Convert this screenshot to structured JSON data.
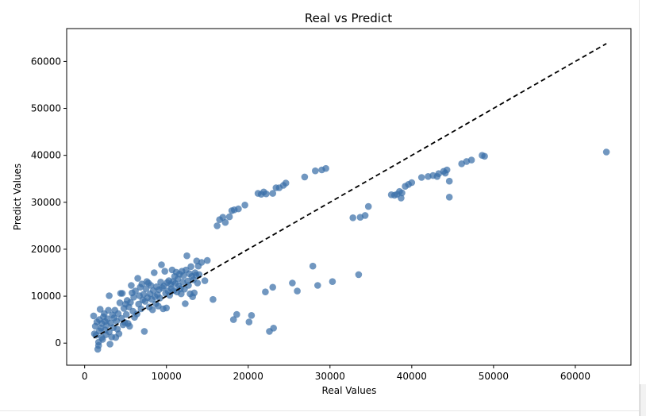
{
  "chart_data": {
    "type": "scatter",
    "title": "Real vs Predict",
    "xlabel": "Real Values",
    "ylabel": "Predict Values",
    "xlim": [
      -2200,
      66800
    ],
    "ylim": [
      -4700,
      67000
    ],
    "xticks": [
      0,
      10000,
      20000,
      30000,
      40000,
      50000,
      60000
    ],
    "yticks": [
      0,
      10000,
      20000,
      30000,
      40000,
      50000,
      60000
    ],
    "grid": false,
    "point_color": "#3a6fa8",
    "line_color": "#000000",
    "reference_line": {
      "x": [
        1100,
        63800
      ],
      "y": [
        1100,
        63800
      ],
      "style": "dashed"
    },
    "points": [
      [
        1100,
        5800
      ],
      [
        1200,
        2000
      ],
      [
        1300,
        3600
      ],
      [
        1400,
        1700
      ],
      [
        1500,
        4500
      ],
      [
        1600,
        -1300
      ],
      [
        1700,
        -500
      ],
      [
        1700,
        200
      ],
      [
        1800,
        2600
      ],
      [
        1800,
        5000
      ],
      [
        1900,
        7200
      ],
      [
        2000,
        3200
      ],
      [
        2100,
        1200
      ],
      [
        2100,
        4200
      ],
      [
        2200,
        800
      ],
      [
        2300,
        5600
      ],
      [
        2400,
        6300
      ],
      [
        2500,
        2800
      ],
      [
        2500,
        4600
      ],
      [
        2600,
        1800
      ],
      [
        2700,
        3800
      ],
      [
        2800,
        5200
      ],
      [
        2900,
        7000
      ],
      [
        3000,
        10100
      ],
      [
        3000,
        2400
      ],
      [
        3100,
        -200
      ],
      [
        3200,
        4300
      ],
      [
        3300,
        1300
      ],
      [
        3400,
        6000
      ],
      [
        3500,
        3300
      ],
      [
        3600,
        5400
      ],
      [
        3700,
        7000
      ],
      [
        3800,
        1200
      ],
      [
        3900,
        4700
      ],
      [
        4000,
        3000
      ],
      [
        4100,
        6300
      ],
      [
        4200,
        2000
      ],
      [
        4300,
        8600
      ],
      [
        4400,
        10600
      ],
      [
        4500,
        5300
      ],
      [
        4600,
        10600
      ],
      [
        4700,
        3900
      ],
      [
        4800,
        7400
      ],
      [
        4900,
        4400
      ],
      [
        5000,
        8300
      ],
      [
        5100,
        6100
      ],
      [
        5200,
        9100
      ],
      [
        5300,
        4200
      ],
      [
        5400,
        7700
      ],
      [
        5500,
        3600
      ],
      [
        5600,
        8700
      ],
      [
        5700,
        12300
      ],
      [
        5800,
        10700
      ],
      [
        5900,
        6800
      ],
      [
        6000,
        9800
      ],
      [
        6100,
        5500
      ],
      [
        6200,
        11100
      ],
      [
        6400,
        6200
      ],
      [
        6500,
        13800
      ],
      [
        6600,
        8300
      ],
      [
        6700,
        10100
      ],
      [
        6800,
        11900
      ],
      [
        6900,
        7300
      ],
      [
        7000,
        12600
      ],
      [
        7100,
        9200
      ],
      [
        7200,
        10400
      ],
      [
        7300,
        2500
      ],
      [
        7400,
        8900
      ],
      [
        7500,
        11600
      ],
      [
        7600,
        13100
      ],
      [
        7700,
        9700
      ],
      [
        7800,
        12800
      ],
      [
        7900,
        7700
      ],
      [
        8000,
        10500
      ],
      [
        8100,
        12300
      ],
      [
        8200,
        9300
      ],
      [
        8300,
        7100
      ],
      [
        8400,
        11200
      ],
      [
        8500,
        15000
      ],
      [
        8600,
        9900
      ],
      [
        8700,
        8400
      ],
      [
        8800,
        12000
      ],
      [
        8900,
        10300
      ],
      [
        9000,
        7900
      ],
      [
        9100,
        11400
      ],
      [
        9200,
        9600
      ],
      [
        9300,
        13000
      ],
      [
        9400,
        16700
      ],
      [
        9500,
        11800
      ],
      [
        9600,
        7300
      ],
      [
        9700,
        12200
      ],
      [
        9800,
        15300
      ],
      [
        9900,
        10600
      ],
      [
        10000,
        7500
      ],
      [
        10100,
        12900
      ],
      [
        10200,
        11100
      ],
      [
        10300,
        13300
      ],
      [
        10400,
        10200
      ],
      [
        10500,
        12500
      ],
      [
        10600,
        11600
      ],
      [
        10700,
        15600
      ],
      [
        10800,
        13100
      ],
      [
        10900,
        11200
      ],
      [
        11000,
        14200
      ],
      [
        11100,
        12700
      ],
      [
        11200,
        15100
      ],
      [
        11300,
        10900
      ],
      [
        11400,
        13700
      ],
      [
        11500,
        12200
      ],
      [
        11600,
        14700
      ],
      [
        11700,
        11600
      ],
      [
        11800,
        10500
      ],
      [
        11900,
        15300
      ],
      [
        12000,
        13000
      ],
      [
        12100,
        14400
      ],
      [
        12200,
        11500
      ],
      [
        12300,
        8400
      ],
      [
        12400,
        15600
      ],
      [
        12500,
        18600
      ],
      [
        12600,
        13200
      ],
      [
        12700,
        12300
      ],
      [
        12800,
        14800
      ],
      [
        12900,
        10500
      ],
      [
        13000,
        16300
      ],
      [
        13100,
        14200
      ],
      [
        13200,
        9900
      ],
      [
        13300,
        13500
      ],
      [
        13400,
        10700
      ],
      [
        13500,
        15000
      ],
      [
        13600,
        14500
      ],
      [
        13700,
        17500
      ],
      [
        13800,
        12800
      ],
      [
        13900,
        16400
      ],
      [
        14000,
        14600
      ],
      [
        14300,
        17200
      ],
      [
        14700,
        13300
      ],
      [
        15000,
        17600
      ],
      [
        15700,
        9300
      ],
      [
        16200,
        25000
      ],
      [
        16500,
        26300
      ],
      [
        16900,
        26800
      ],
      [
        17200,
        25700
      ],
      [
        17700,
        26900
      ],
      [
        18000,
        28200
      ],
      [
        18200,
        5000
      ],
      [
        18300,
        28400
      ],
      [
        18600,
        6100
      ],
      [
        18800,
        28600
      ],
      [
        19600,
        29400
      ],
      [
        20100,
        4500
      ],
      [
        20400,
        5900
      ],
      [
        21200,
        31900
      ],
      [
        21600,
        31700
      ],
      [
        21900,
        32200
      ],
      [
        22200,
        31800
      ],
      [
        22100,
        10900
      ],
      [
        22600,
        2500
      ],
      [
        23000,
        31900
      ],
      [
        23100,
        3200
      ],
      [
        23000,
        11900
      ],
      [
        23400,
        33100
      ],
      [
        23800,
        33100
      ],
      [
        24300,
        33600
      ],
      [
        24600,
        34100
      ],
      [
        25400,
        12800
      ],
      [
        26000,
        11100
      ],
      [
        26900,
        35400
      ],
      [
        27900,
        16400
      ],
      [
        28200,
        36700
      ],
      [
        28500,
        12300
      ],
      [
        29000,
        36900
      ],
      [
        29500,
        37200
      ],
      [
        30300,
        13100
      ],
      [
        32800,
        26700
      ],
      [
        33500,
        14600
      ],
      [
        33700,
        26800
      ],
      [
        34300,
        27200
      ],
      [
        34700,
        29100
      ],
      [
        37500,
        31600
      ],
      [
        37900,
        31500
      ],
      [
        38200,
        31700
      ],
      [
        38500,
        32300
      ],
      [
        38700,
        30900
      ],
      [
        38800,
        32000
      ],
      [
        39200,
        33400
      ],
      [
        39600,
        33800
      ],
      [
        40000,
        34200
      ],
      [
        41200,
        35300
      ],
      [
        42000,
        35500
      ],
      [
        42600,
        35700
      ],
      [
        43100,
        35500
      ],
      [
        43300,
        36100
      ],
      [
        43900,
        36600
      ],
      [
        44100,
        36200
      ],
      [
        44300,
        36900
      ],
      [
        44600,
        34500
      ],
      [
        44600,
        31100
      ],
      [
        46100,
        38200
      ],
      [
        46700,
        38700
      ],
      [
        47300,
        39000
      ],
      [
        48600,
        40000
      ],
      [
        48900,
        39800
      ],
      [
        63800,
        40700
      ]
    ]
  }
}
